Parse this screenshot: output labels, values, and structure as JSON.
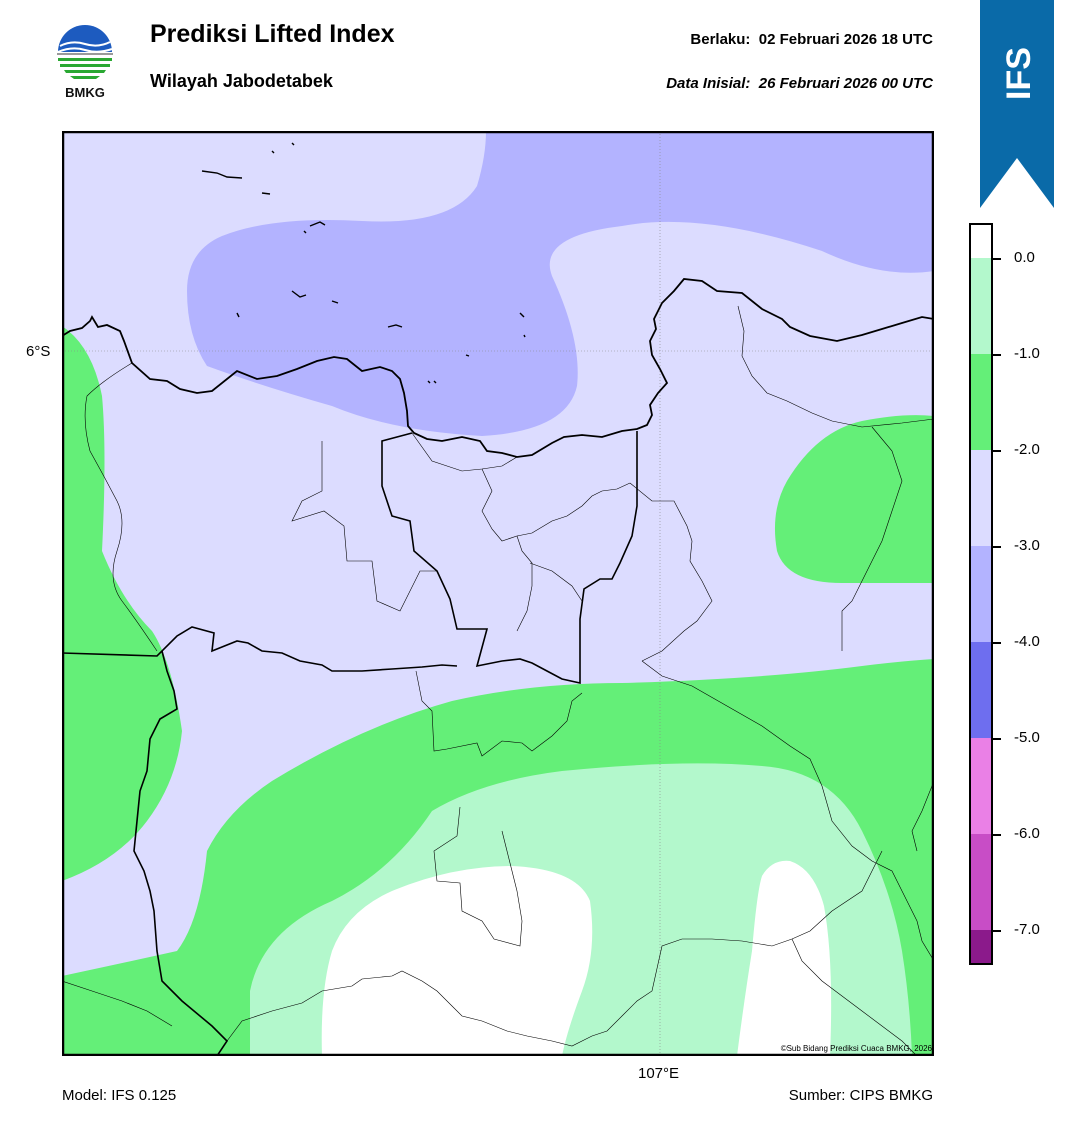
{
  "header": {
    "title": "Prediksi Lifted Index",
    "subtitle": "Wilayah Jabodetabek",
    "valid_label": "Berlaku:  02 Februari 2026 18 UTC",
    "init_label": "Data Inisial:  26 Februari 2026 00 UTC"
  },
  "logo": {
    "text": "BMKG",
    "icon": "bmkg-logo-icon"
  },
  "ribbon": {
    "text": "IFS",
    "color": "#0a6aa8"
  },
  "map": {
    "lat_label": "6°S",
    "lon_label": "107°E",
    "copyright": "©Sub Bidang Prediksi Cuaca BMKG, 2026"
  },
  "colorbar": {
    "labels": [
      "0.0",
      "-1.0",
      "-2.0",
      "-3.0",
      "-4.0",
      "-5.0",
      "-6.0",
      "-7.0"
    ],
    "colors": [
      "#ffffff",
      "#b3f8cc",
      "#64ef78",
      "#dcdcff",
      "#b3b3ff",
      "#6e6eef",
      "#ea80e6",
      "#c84dc6",
      "#8b1a8b"
    ]
  },
  "footer": {
    "model": "Model: IFS 0.125",
    "source": "Sumber: CIPS BMKG"
  }
}
